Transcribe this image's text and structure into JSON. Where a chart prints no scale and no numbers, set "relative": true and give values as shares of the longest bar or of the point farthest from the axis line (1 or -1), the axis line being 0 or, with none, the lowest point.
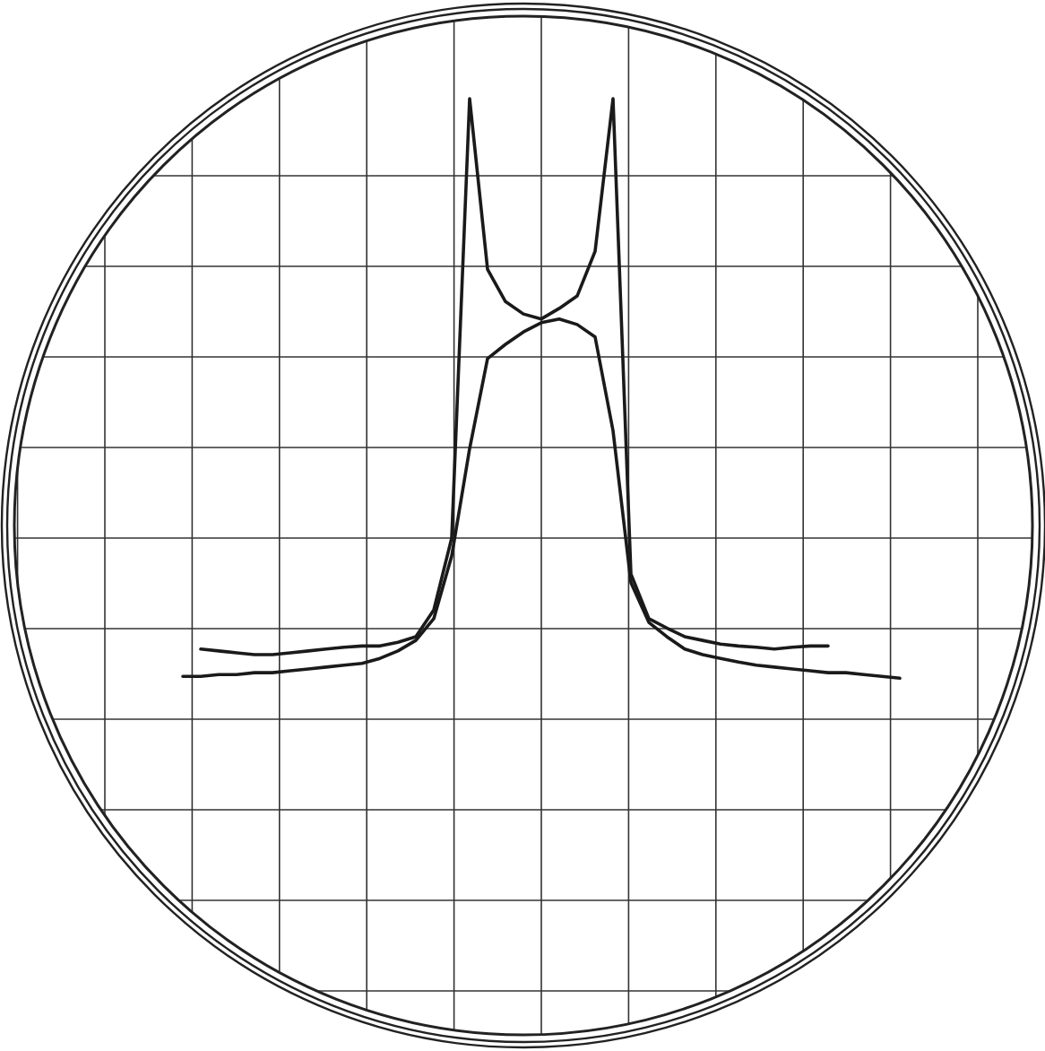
{
  "chart_data": {
    "type": "line",
    "relative": true,
    "grid": true,
    "categories": [
      null,
      null,
      null,
      null,
      null,
      null,
      null,
      null,
      null,
      null,
      null,
      null,
      null,
      null,
      null,
      null,
      null,
      null,
      null,
      null,
      null,
      null,
      null,
      null,
      null,
      null,
      null,
      null,
      null,
      null,
      null,
      null,
      null,
      null,
      null,
      null,
      null,
      null,
      null,
      null,
      null
    ],
    "series": [
      {
        "color": "#1a1a1a",
        "values": [
          0.069,
          0.069,
          0.072,
          0.072,
          0.075,
          0.075,
          0.078,
          0.081,
          0.084,
          0.087,
          0.09,
          0.098,
          0.11,
          0.127,
          0.162,
          0.263,
          0.436,
          0.581,
          0.604,
          0.624,
          0.639,
          0.645,
          0.636,
          0.616,
          0.465,
          0.22,
          0.156,
          0.133,
          0.113,
          0.104,
          0.098,
          0.092,
          0.087,
          0.084,
          0.081,
          0.078,
          0.075,
          0.075,
          0.072,
          0.069,
          0.066
        ]
      },
      {
        "color": "#1a1a1a",
        "values": [
          null,
          0.113,
          0.11,
          0.107,
          0.104,
          0.104,
          0.107,
          0.11,
          0.113,
          0.116,
          0.118,
          0.118,
          0.124,
          0.133,
          0.176,
          0.292,
          1,
          0.725,
          0.673,
          0.653,
          0.645,
          0.662,
          0.682,
          0.754,
          1,
          0.234,
          0.162,
          0.147,
          0.133,
          0.127,
          0.121,
          0.118,
          0.116,
          0.113,
          0.116,
          0.118,
          0.118,
          null,
          null,
          null,
          null
        ]
      }
    ]
  }
}
